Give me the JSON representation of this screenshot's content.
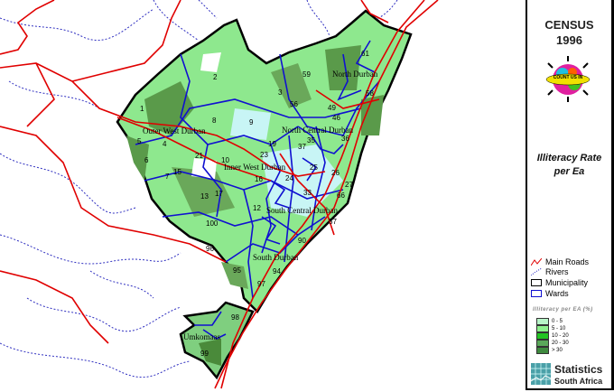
{
  "panel": {
    "title_line1": "CENSUS",
    "title_line2": "1996",
    "logo_text": "COUNT US IN",
    "map_title_line1": "Illiteracy Rate",
    "map_title_line2": "per Ea",
    "legend": [
      {
        "label": "Main Roads",
        "icon": "road-line-icon",
        "color": "#e00000"
      },
      {
        "label": "Rivers",
        "icon": "river-dotted-line-icon",
        "color": "#2020c0"
      },
      {
        "label": "Municipality",
        "icon": "municipality-box-icon",
        "color": "#000000"
      },
      {
        "label": "Wards",
        "icon": "ward-box-icon",
        "color": "#1010d0"
      }
    ],
    "class_legend_title": "Illiteracy per EA (%)",
    "classes": [
      {
        "label": "0 - 5",
        "color": "#b8f5c8"
      },
      {
        "label": "5 - 10",
        "color": "#8ef08e"
      },
      {
        "label": "10 - 20",
        "color": "#22c422"
      },
      {
        "label": "20 - 30",
        "color": "#5aa85a"
      },
      {
        "label": "> 30",
        "color": "#3f8a3f"
      }
    ],
    "brand_line1": "Statistics",
    "brand_line2": "South Africa"
  },
  "map": {
    "region_labels": [
      "Outer West Durban",
      "North Durban",
      "North Central Durban",
      "Inner West Durban",
      "South Central Durban",
      "South Durban",
      "Umkomaas"
    ],
    "ward_labels": [
      "61",
      "59",
      "58",
      "3",
      "2",
      "56",
      "49",
      "46",
      "8",
      "9",
      "1",
      "5",
      "4",
      "19",
      "37",
      "35",
      "36",
      "10",
      "21",
      "23",
      "25",
      "26",
      "27",
      "15",
      "16",
      "17",
      "13",
      "100",
      "12",
      "96",
      "95",
      "97",
      "98",
      "99",
      "7",
      "6",
      "24",
      "33",
      "66",
      "57",
      "90",
      "94"
    ]
  }
}
